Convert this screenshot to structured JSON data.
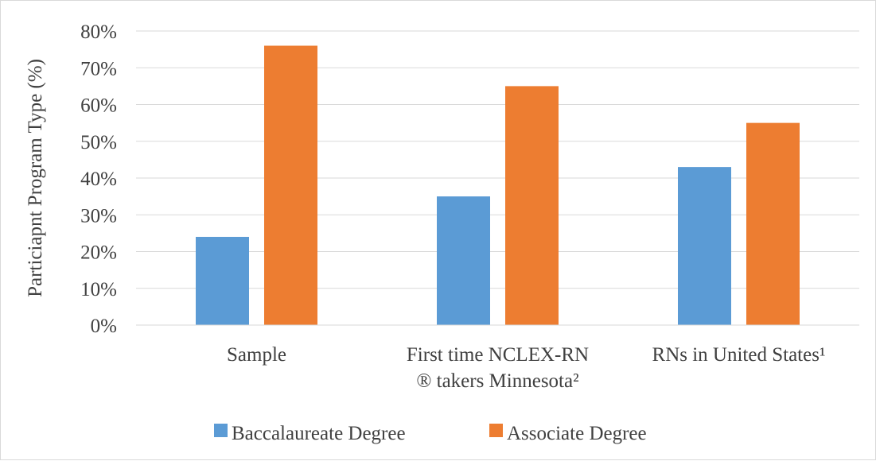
{
  "chart_data": {
    "type": "bar",
    "title": "",
    "xlabel": "",
    "ylabel": "Particiapnt Program Type (%)",
    "ylim": [
      0,
      80
    ],
    "y_tick_step": 10,
    "y_tick_format": "percent",
    "grid": true,
    "legend_position": "bottom",
    "categories": [
      [
        "Sample"
      ],
      [
        "First time NCLEX-RN",
        "® takers Minnesota²"
      ],
      [
        "RNs in United States¹"
      ]
    ],
    "series": [
      {
        "name": "Baccalaureate Degree",
        "color": "#5b9bd5",
        "values": [
          24,
          35,
          43
        ]
      },
      {
        "name": "Associate Degree",
        "color": "#ed7d31",
        "values": [
          76,
          65,
          55
        ]
      }
    ]
  }
}
